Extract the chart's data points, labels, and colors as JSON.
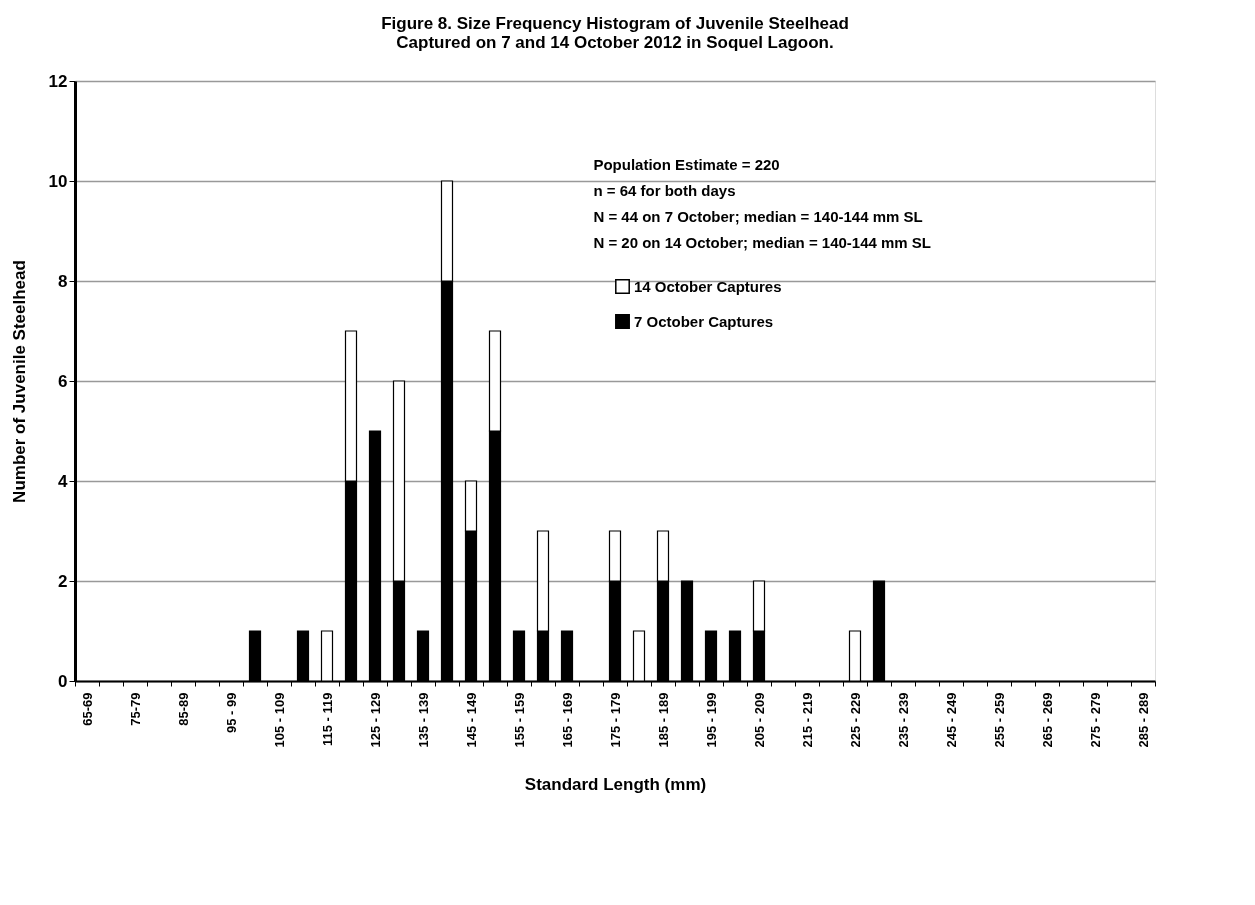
{
  "chart_data": {
    "type": "bar",
    "stacked": true,
    "title": "Figure 8. Size Frequency Histogram of Juvenile Steelhead Captured on 7 and 14 October 2012 in Soquel Lagoon.",
    "xlabel": "Standard Length (mm)",
    "ylabel": "Number of Juvenile Steelhead",
    "categories": [
      "65-69",
      null,
      "75-79",
      null,
      "85-89",
      null,
      "95 - 99",
      null,
      "105 - 109",
      null,
      "115 - 119",
      null,
      "125 - 129",
      null,
      "135 - 139",
      null,
      "145 - 149",
      null,
      "155 - 159",
      null,
      "165 - 169",
      null,
      "175 - 179",
      null,
      "185 - 189",
      null,
      "195 - 199",
      null,
      "205 - 209",
      null,
      "215 - 219",
      null,
      "225 - 229",
      null,
      "235 - 239",
      null,
      "245 - 249",
      null,
      "255 - 259",
      null,
      "265 - 269",
      null,
      "275 - 279",
      null,
      "285 - 289"
    ],
    "series": [
      {
        "name": "7 October Captures",
        "color": "#000000",
        "values": [
          null,
          null,
          null,
          null,
          null,
          null,
          null,
          1,
          null,
          1,
          null,
          4,
          5,
          2,
          1,
          8,
          3,
          5,
          1,
          1,
          1,
          null,
          2,
          null,
          2,
          2,
          1,
          1,
          1,
          null,
          null,
          null,
          null,
          2,
          null,
          null,
          null,
          null,
          null,
          null,
          null,
          null,
          null,
          null,
          null
        ]
      },
      {
        "name": "14 October Captures",
        "color": "#ffffff",
        "values": [
          null,
          null,
          null,
          null,
          null,
          null,
          null,
          null,
          null,
          null,
          1,
          3,
          null,
          4,
          null,
          2,
          1,
          2,
          null,
          2,
          null,
          null,
          1,
          1,
          1,
          null,
          null,
          null,
          1,
          null,
          null,
          null,
          1,
          null,
          null,
          null,
          null,
          null,
          null,
          null,
          null,
          null,
          null,
          null,
          null
        ]
      }
    ],
    "ylim": [
      0,
      12
    ],
    "yticks": [
      0,
      2,
      4,
      6,
      8,
      10,
      12
    ],
    "grid": "y",
    "legend": "top right",
    "annotations": [
      "Population Estimate = 220",
      "n = 64 for both days",
      "N = 44 on 7 October; median = 140-144 mm SL",
      "N = 20 on 14 October; median = 140-144 mm SL"
    ]
  }
}
